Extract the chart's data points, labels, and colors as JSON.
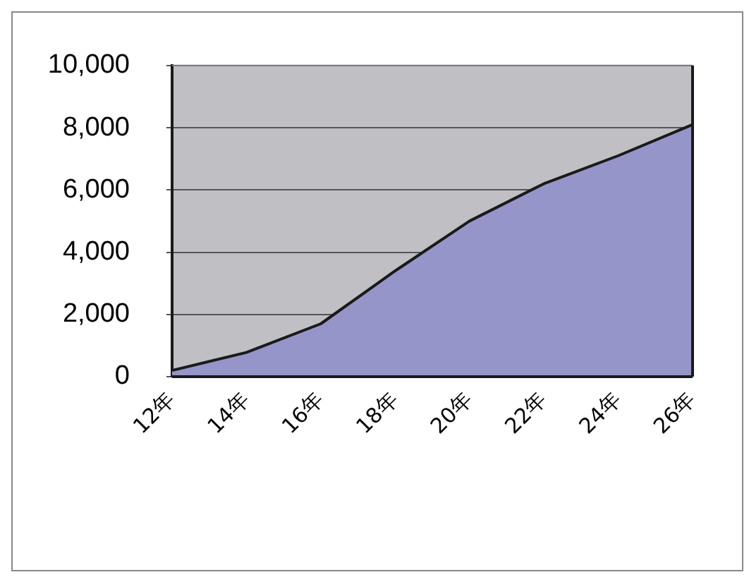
{
  "chart_data": {
    "type": "area",
    "categories": [
      "12年",
      "14年",
      "16年",
      "18年",
      "20年",
      "22年",
      "24年",
      "26年"
    ],
    "series": [
      {
        "color": "#9595c9",
        "values": [
          200,
          780,
          1700,
          3400,
          5000,
          6200,
          7100,
          8100
        ]
      }
    ],
    "ylim": [
      0,
      10000
    ],
    "yticks": [
      0,
      {
        "value": 2000,
        "label": "2,000"
      },
      {
        "value": 4000,
        "label": "4,000"
      },
      {
        "value": 6000,
        "label": "6,000"
      },
      {
        "value": 8000,
        "label": "8,000"
      },
      {
        "value": 10000,
        "label": "10,000"
      }
    ],
    "grid": "y",
    "legend": false
  }
}
